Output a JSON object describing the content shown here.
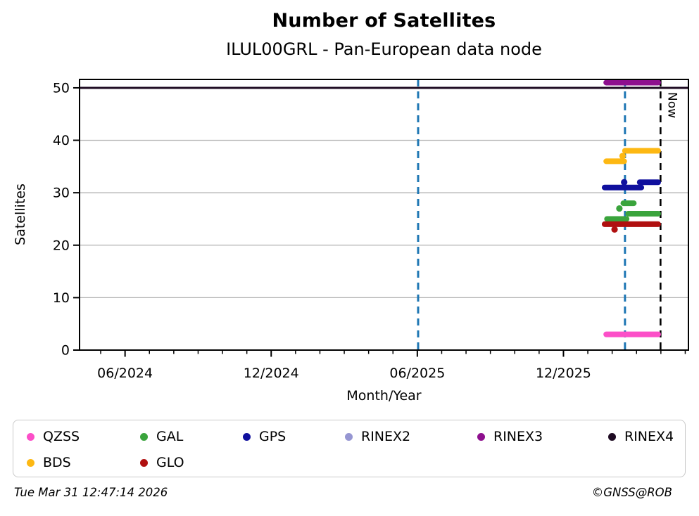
{
  "figure": {
    "footer_timestamp": "Tue Mar 31 12:47:14 2026",
    "footer_copyright": "©GNSS@ROB"
  },
  "chart_data": {
    "type": "line",
    "title": "Number of Satellites",
    "subtitle": "ILUL00GRL - Pan-European data node",
    "xlabel": "Month/Year",
    "ylabel": "Satellites",
    "grid": "horizontal-only",
    "x_axis": {
      "start": "2024-04-05",
      "end": "2026-05-05",
      "major_ticks": [
        {
          "date": "2024-06-01",
          "label": "06/2024"
        },
        {
          "date": "2024-12-01",
          "label": "12/2024"
        },
        {
          "date": "2025-06-01",
          "label": "06/2025"
        },
        {
          "date": "2025-12-01",
          "label": "12/2025"
        }
      ],
      "minor_ticks": "monthly"
    },
    "y_axis": {
      "min": 0,
      "max": 51.6,
      "ticks": [
        0,
        10,
        20,
        30,
        40,
        50
      ],
      "grid_values": [
        10,
        20,
        30,
        40
      ]
    },
    "series": [
      {
        "name": "RINEX4",
        "color": "#1e0b22",
        "line_width": 3,
        "cap": "butt",
        "segments": [
          {
            "start": "2024-04-05",
            "end": "2026-05-05",
            "value": 50
          }
        ],
        "points": []
      },
      {
        "name": "RINEX3",
        "color": "#8e0f8e",
        "line_width": 8,
        "cap": "round",
        "segments": [
          {
            "start": "2026-01-24",
            "end": "2026-03-28",
            "value": 51
          }
        ],
        "points": []
      },
      {
        "name": "RINEX2",
        "color": "#9696d2",
        "line_width": 8,
        "cap": "round",
        "segments": [],
        "points": []
      },
      {
        "name": "QZSS",
        "color": "#fc4fc8",
        "line_width": 8,
        "cap": "round",
        "segments": [
          {
            "start": "2026-01-24",
            "end": "2026-03-28",
            "value": 3
          }
        ],
        "points": []
      },
      {
        "name": "BDS",
        "color": "#fdb813",
        "line_width": 8,
        "cap": "round",
        "segments": [
          {
            "start": "2026-01-24",
            "end": "2026-02-16",
            "value": 36
          },
          {
            "start": "2026-02-17",
            "end": "2026-03-28",
            "value": 38
          }
        ],
        "points": [
          {
            "date": "2026-02-14",
            "value": 37
          }
        ]
      },
      {
        "name": "GPS",
        "color": "#10109e",
        "line_width": 8,
        "cap": "round",
        "segments": [
          {
            "start": "2026-01-22",
            "end": "2026-03-07",
            "value": 31
          },
          {
            "start": "2026-03-05",
            "end": "2026-03-28",
            "value": 32
          }
        ],
        "points": [
          {
            "date": "2026-02-16",
            "value": 32
          }
        ]
      },
      {
        "name": "GAL",
        "color": "#3aa43c",
        "line_width": 8,
        "cap": "round",
        "segments": [
          {
            "start": "2026-01-25",
            "end": "2026-02-19",
            "value": 25
          },
          {
            "start": "2026-02-15",
            "end": "2026-02-28",
            "value": 28
          },
          {
            "start": "2026-02-21",
            "end": "2026-03-28",
            "value": 26
          }
        ],
        "points": [
          {
            "date": "2026-02-10",
            "value": 27
          }
        ]
      },
      {
        "name": "GLO",
        "color": "#b01010",
        "line_width": 8,
        "cap": "round",
        "segments": [
          {
            "start": "2026-01-22",
            "end": "2026-03-28",
            "value": 24
          }
        ],
        "points": [
          {
            "date": "2026-02-04",
            "value": 23
          }
        ]
      }
    ],
    "event_lines": [
      {
        "date": "2025-06-02",
        "color": "#1f77b4",
        "style": "dashed",
        "width": 3,
        "label": ""
      },
      {
        "date": "2026-02-17",
        "color": "#1f77b4",
        "style": "dashed",
        "width": 3,
        "label": ""
      },
      {
        "date": "2026-03-31",
        "color": "#000000",
        "style": "dashed",
        "width": 2.6,
        "label": "Now"
      }
    ],
    "legend": {
      "items": [
        {
          "label": "QZSS",
          "color": "#fc4fc8",
          "col": 0,
          "row": 0
        },
        {
          "label": "GAL",
          "color": "#3aa43c",
          "col": 1,
          "row": 0
        },
        {
          "label": "GPS",
          "color": "#10109e",
          "col": 2,
          "row": 0
        },
        {
          "label": "RINEX2",
          "color": "#9696d2",
          "col": 3,
          "row": 0
        },
        {
          "label": "RINEX3",
          "color": "#8e0f8e",
          "col": 4,
          "row": 0
        },
        {
          "label": "RINEX4",
          "color": "#1e0b22",
          "col": 5,
          "row": 0
        },
        {
          "label": "BDS",
          "color": "#fdb813",
          "col": 0,
          "row": 1
        },
        {
          "label": "GLO",
          "color": "#b01010",
          "col": 1,
          "row": 1
        }
      ]
    }
  }
}
